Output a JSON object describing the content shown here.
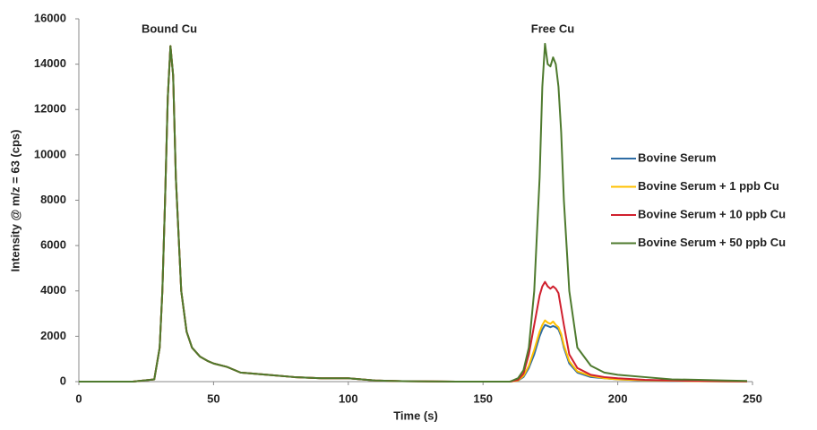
{
  "chart_data": {
    "type": "line",
    "x_label": "Time (s)",
    "y_label": "Intensity @ m/z = 63 (cps)",
    "annotations": [
      "Bound Cu",
      "Free Cu"
    ],
    "x": [
      0,
      20,
      28,
      30,
      31,
      32,
      33,
      34,
      35,
      36,
      38,
      40,
      42,
      45,
      48,
      50,
      55,
      60,
      70,
      80,
      90,
      100,
      105,
      110,
      120,
      140,
      160,
      163,
      165,
      167,
      169,
      171,
      172,
      173,
      174,
      175,
      176,
      177,
      178,
      179,
      180,
      182,
      185,
      190,
      195,
      200,
      210,
      220,
      230,
      240,
      248
    ],
    "series": [
      {
        "name": "Bovine Serum",
        "color": "#2e6ca4",
        "values": [
          0,
          0,
          100,
          1500,
          4000,
          8000,
          12500,
          14800,
          13500,
          9000,
          4000,
          2200,
          1500,
          1100,
          900,
          800,
          650,
          400,
          300,
          200,
          150,
          150,
          100,
          50,
          20,
          0,
          0,
          50,
          200,
          600,
          1200,
          2000,
          2300,
          2500,
          2450,
          2400,
          2450,
          2400,
          2300,
          2000,
          1500,
          800,
          400,
          200,
          150,
          100,
          50,
          30,
          20,
          10,
          10
        ]
      },
      {
        "name": "Bovine Serum + 1 ppb Cu",
        "color": "#ffc000",
        "values": [
          0,
          0,
          100,
          1500,
          4000,
          8000,
          12500,
          14800,
          13500,
          9000,
          4000,
          2200,
          1500,
          1100,
          900,
          800,
          650,
          400,
          300,
          200,
          150,
          150,
          100,
          50,
          20,
          0,
          0,
          50,
          250,
          700,
          1400,
          2200,
          2500,
          2700,
          2600,
          2550,
          2650,
          2500,
          2400,
          2100,
          1600,
          900,
          450,
          250,
          150,
          100,
          60,
          40,
          20,
          10,
          10
        ]
      },
      {
        "name": "Bovine Serum + 10 ppb Cu",
        "color": "#d0202e",
        "values": [
          0,
          0,
          100,
          1500,
          4000,
          8000,
          12500,
          14800,
          13500,
          9000,
          4000,
          2200,
          1500,
          1100,
          900,
          800,
          650,
          400,
          300,
          200,
          150,
          150,
          100,
          50,
          20,
          0,
          0,
          80,
          350,
          1200,
          2500,
          3800,
          4200,
          4400,
          4200,
          4100,
          4200,
          4100,
          3900,
          3200,
          2500,
          1200,
          600,
          300,
          200,
          150,
          80,
          50,
          30,
          20,
          10
        ]
      },
      {
        "name": "Bovine Serum + 50 ppb Cu",
        "color": "#4e7a2e",
        "values": [
          0,
          0,
          100,
          1500,
          4000,
          8000,
          12500,
          14800,
          13500,
          9000,
          4000,
          2200,
          1500,
          1100,
          900,
          800,
          650,
          400,
          300,
          200,
          150,
          150,
          100,
          50,
          20,
          0,
          0,
          150,
          500,
          1500,
          4000,
          9000,
          13000,
          14900,
          14000,
          13900,
          14300,
          14000,
          13000,
          11000,
          8000,
          4000,
          1500,
          700,
          400,
          300,
          200,
          100,
          80,
          50,
          30
        ]
      }
    ],
    "xlim": [
      0,
      250
    ],
    "xticks": [
      0,
      50,
      100,
      150,
      200,
      250
    ],
    "ylim": [
      0,
      16000
    ],
    "yticks": [
      0,
      2000,
      4000,
      6000,
      8000,
      10000,
      12000,
      14000,
      16000
    ],
    "grid": false,
    "legend": "right"
  }
}
